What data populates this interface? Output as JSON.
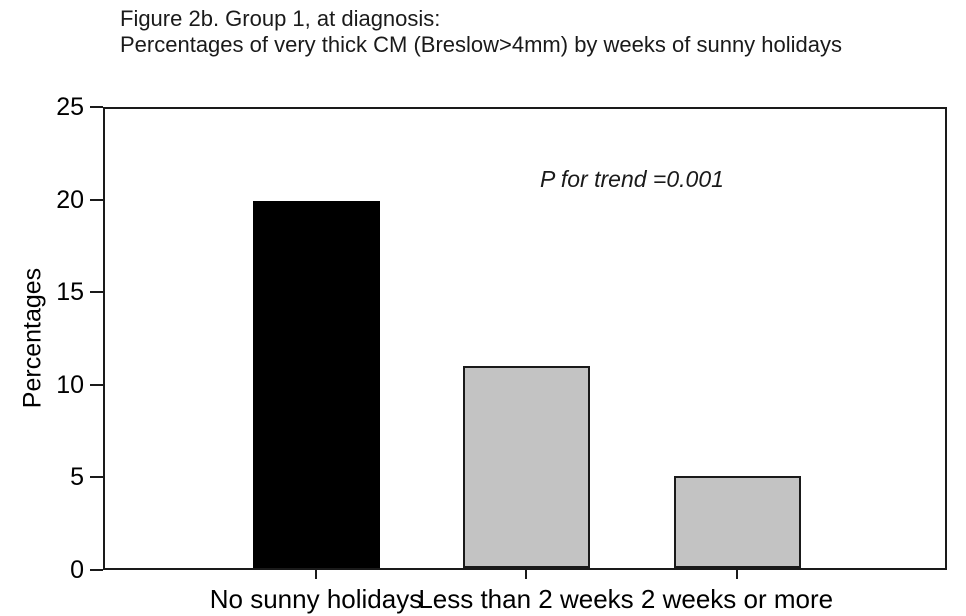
{
  "chart_data": {
    "type": "bar",
    "title_line1": "Figure 2b. Group 1, at diagnosis:",
    "title_line2": "Percentages of very thick CM (Breslow>4mm) by weeks of sunny holidays",
    "categories": [
      "No sunny holidays",
      "Less than 2 weeks",
      "2 weeks or more"
    ],
    "values": [
      20,
      11,
      5
    ],
    "bar_colors": [
      "#000000",
      "#c3c3c3",
      "#c3c3c3"
    ],
    "bar_border_color": "#1a1a1a",
    "annotation": "P for trend =0.001",
    "ylabel": "Percentages",
    "xlabel": "",
    "ylim": [
      0,
      25
    ],
    "yticks": [
      0,
      5,
      10,
      15,
      20,
      25
    ],
    "grid": false,
    "legend": false,
    "frame_color": "#1a1a1a",
    "background_color": "#ffffff"
  }
}
